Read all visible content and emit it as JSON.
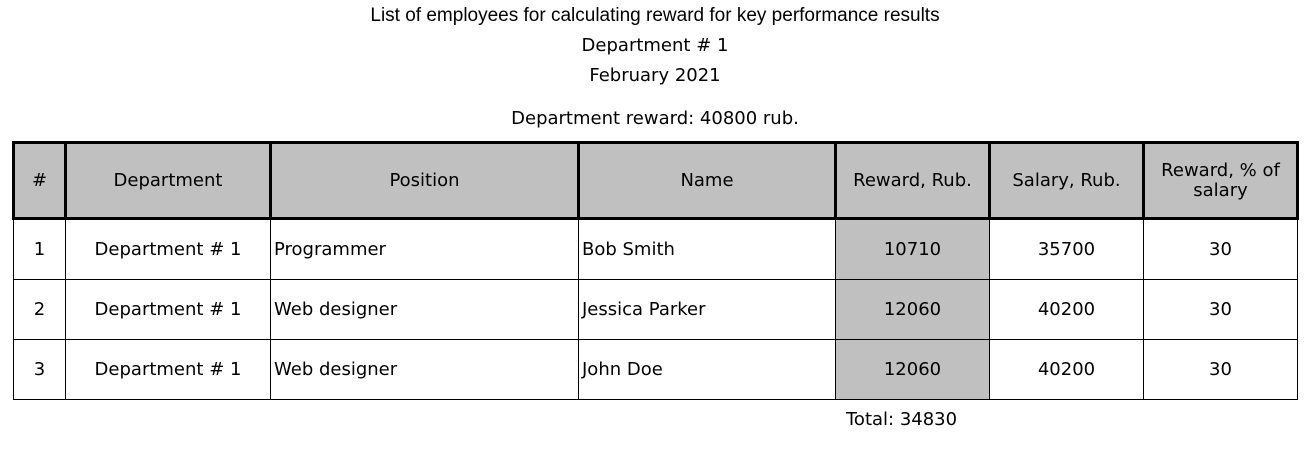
{
  "report": {
    "title": "List of employees for calculating reward for key performance results",
    "department": "Department # 1",
    "period": "February 2021",
    "department_reward": "Department reward: 40800 rub.",
    "columns": [
      "#",
      "Department",
      "Position",
      "Name",
      "Reward, Rub.",
      "Salary, Rub.",
      "Reward, % of salary"
    ],
    "rows": [
      {
        "num": "1",
        "department": "Department # 1",
        "position": "Programmer",
        "name": "Bob Smith",
        "reward": "10710",
        "salary": "35700",
        "percent": "30"
      },
      {
        "num": "2",
        "department": "Department # 1",
        "position": "Web designer",
        "name": "Jessica Parker",
        "reward": "12060",
        "salary": "40200",
        "percent": "30"
      },
      {
        "num": "3",
        "department": "Department # 1",
        "position": "Web designer",
        "name": "John Doe",
        "reward": "12060",
        "salary": "40200",
        "percent": "30"
      }
    ],
    "total": "Total: 34830"
  }
}
